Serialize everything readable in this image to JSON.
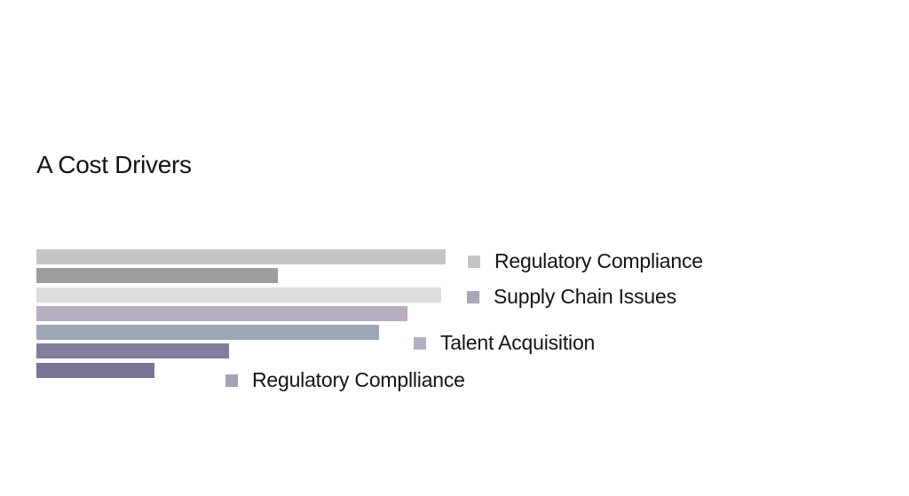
{
  "title": "A Cost Drivers",
  "page_background": "#ffffff",
  "text_color": "#141414",
  "chart_data": {
    "type": "bar",
    "orientation": "horizontal",
    "title": "A Cost Drivers",
    "xlabel": "",
    "ylabel": "",
    "axes_visible": false,
    "grid": false,
    "value_unit": "percent_of_longest_bar (no axis or value labels shown)",
    "bars": [
      {
        "value_pct": 100.0,
        "color": "#c5c5c5"
      },
      {
        "value_pct": 59.0,
        "color": "#9c9c9c"
      },
      {
        "value_pct": 98.9,
        "color": "#dcdcdc"
      },
      {
        "value_pct": 90.7,
        "color": "#b7aec2"
      },
      {
        "value_pct": 83.7,
        "color": "#9fa4b6"
      },
      {
        "value_pct": 47.1,
        "color": "#827e9e"
      },
      {
        "value_pct": 28.9,
        "color": "#797394"
      }
    ],
    "legend": [
      {
        "label": "Regulatory Compliance",
        "color": "#c5c5c5"
      },
      {
        "label": "Supply Chain Issues",
        "color": "#aaa5b8"
      },
      {
        "label": "Talent Acquisition",
        "color": "#b5aec3"
      },
      {
        "label": "Regulatory Complliance",
        "color": "#a3a0b6"
      }
    ],
    "legend_position": "right-scattered"
  }
}
